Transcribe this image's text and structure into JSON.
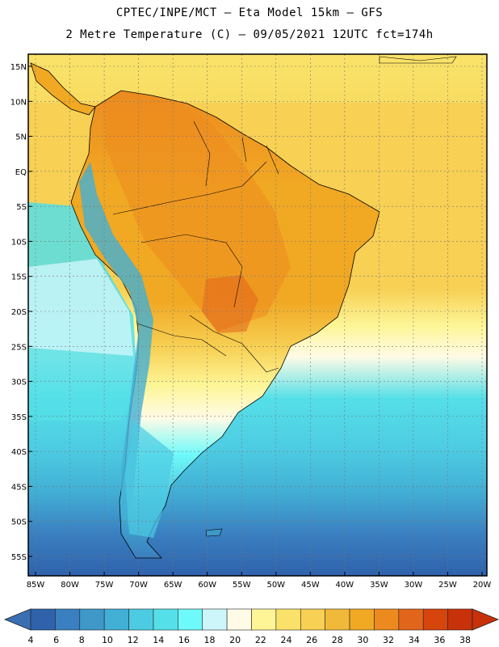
{
  "title_line1": "CPTEC/INPE/MCT –  Eta Model 15km – GFS",
  "title_line2": "2 Metre Temperature (C) – 09/05/2021 12UTC fct=174h",
  "lat_labels": [
    "15N",
    "10N",
    "5N",
    "EQ",
    "5S",
    "10S",
    "15S",
    "20S",
    "25S",
    "30S",
    "35S",
    "40S",
    "45S",
    "50S",
    "55S"
  ],
  "lon_labels": [
    "85W",
    "80W",
    "75W",
    "70W",
    "65W",
    "60W",
    "55W",
    "50W",
    "45W",
    "40W",
    "35W",
    "30W",
    "25W",
    "20W"
  ],
  "colorbar": {
    "labels": [
      "4",
      "6",
      "8",
      "10",
      "12",
      "14",
      "16",
      "18",
      "20",
      "22",
      "24",
      "26",
      "28",
      "30",
      "32",
      "34",
      "36",
      "38"
    ],
    "colors": [
      "#2f62ab",
      "#3a7fc0",
      "#3f98c8",
      "#42afd5",
      "#4dcbe2",
      "#55dfe8",
      "#6ef9fa",
      "#cdf6fb",
      "#fffbe6",
      "#fdf596",
      "#fae26a",
      "#f7d054",
      "#f1b93a",
      "#f1a823",
      "#ec8a1f",
      "#e1661b",
      "#d5450c",
      "#c8320a"
    ]
  },
  "map_colors": {
    "ocean_north": "#f4d054",
    "ocean_mid": "#f7e088",
    "ocean_cool": "#56d9ec",
    "ocean_cold": "#3f98c8",
    "ocean_deep": "#2f62ab",
    "land_hot": "#f1a823",
    "land_veryhot": "#ec8a1f",
    "land_warm": "#f7d054",
    "andes": "#6ef9fa"
  }
}
